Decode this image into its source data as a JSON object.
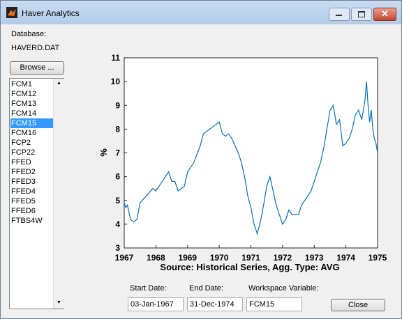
{
  "window": {
    "title": "Haver Analytics"
  },
  "database_label": "Database:",
  "database_value": "HAVERD.DAT",
  "browse_button": "Browse ...",
  "series_list": {
    "items": [
      "FCM1",
      "FCM12",
      "FCM13",
      "FCM14",
      "FCM15",
      "FCM16",
      "FCP2",
      "FCP22",
      "FFED",
      "FFED2",
      "FFED3",
      "FFED4",
      "FFED5",
      "FFED6",
      "FTBS4W"
    ],
    "selected": 4
  },
  "start_date": {
    "label": "Start Date:",
    "value": "03-Jan-1967"
  },
  "end_date": {
    "label": "End Date:",
    "value": "31-Dec-1974"
  },
  "workspace_variable": {
    "label": "Workspace Variable:",
    "value": "FCM15"
  },
  "close_button": "Close",
  "chart_data": {
    "type": "line",
    "x_label": "Source: Historical Series,  Agg. Type: AVG",
    "y_label": "%",
    "x": [
      1967.0,
      1967.05,
      1967.1,
      1967.2,
      1967.3,
      1967.4,
      1967.5,
      1967.7,
      1967.9,
      1968.0,
      1968.1,
      1968.3,
      1968.4,
      1968.5,
      1968.6,
      1968.7,
      1968.9,
      1969.0,
      1969.2,
      1969.4,
      1969.5,
      1969.7,
      1969.9,
      1970.0,
      1970.1,
      1970.2,
      1970.3,
      1970.4,
      1970.5,
      1970.6,
      1970.7,
      1970.8,
      1970.9,
      1971.0,
      1971.1,
      1971.2,
      1971.3,
      1971.4,
      1971.5,
      1971.6,
      1971.7,
      1971.8,
      1971.9,
      1972.0,
      1972.1,
      1972.2,
      1972.3,
      1972.5,
      1972.6,
      1972.8,
      1972.9,
      1973.0,
      1973.2,
      1973.3,
      1973.4,
      1973.5,
      1973.6,
      1973.7,
      1973.8,
      1973.9,
      1974.0,
      1974.1,
      1974.2,
      1974.3,
      1974.4,
      1974.5,
      1974.6,
      1974.65,
      1974.7,
      1974.75,
      1974.8,
      1974.85,
      1974.9,
      1974.95,
      1975.0
    ],
    "values": [
      4.9,
      4.7,
      4.8,
      4.2,
      4.1,
      4.2,
      4.9,
      5.2,
      5.5,
      5.4,
      5.6,
      6.0,
      6.2,
      5.8,
      5.8,
      5.4,
      5.6,
      6.2,
      6.6,
      7.3,
      7.8,
      8.0,
      8.2,
      8.3,
      7.8,
      7.7,
      7.8,
      7.6,
      7.3,
      7.0,
      6.6,
      6.0,
      5.2,
      4.7,
      4.0,
      3.6,
      4.1,
      4.8,
      5.6,
      6.0,
      5.4,
      4.8,
      4.4,
      4.0,
      4.2,
      4.6,
      4.4,
      4.4,
      4.8,
      5.2,
      5.4,
      5.8,
      6.6,
      7.2,
      8.0,
      8.8,
      9.0,
      8.2,
      8.4,
      7.3,
      7.4,
      7.6,
      8.0,
      8.6,
      8.8,
      8.4,
      9.2,
      10.0,
      9.0,
      8.3,
      8.8,
      8.0,
      7.6,
      7.4,
      7.0
    ],
    "color": "#0072bd",
    "xlim": [
      1967,
      1975
    ],
    "xticks": [
      1967,
      1968,
      1969,
      1970,
      1971,
      1972,
      1973,
      1974,
      1975
    ],
    "ylim": [
      3,
      11
    ],
    "yticks": [
      3,
      4,
      5,
      6,
      7,
      8,
      9,
      10,
      11
    ]
  }
}
